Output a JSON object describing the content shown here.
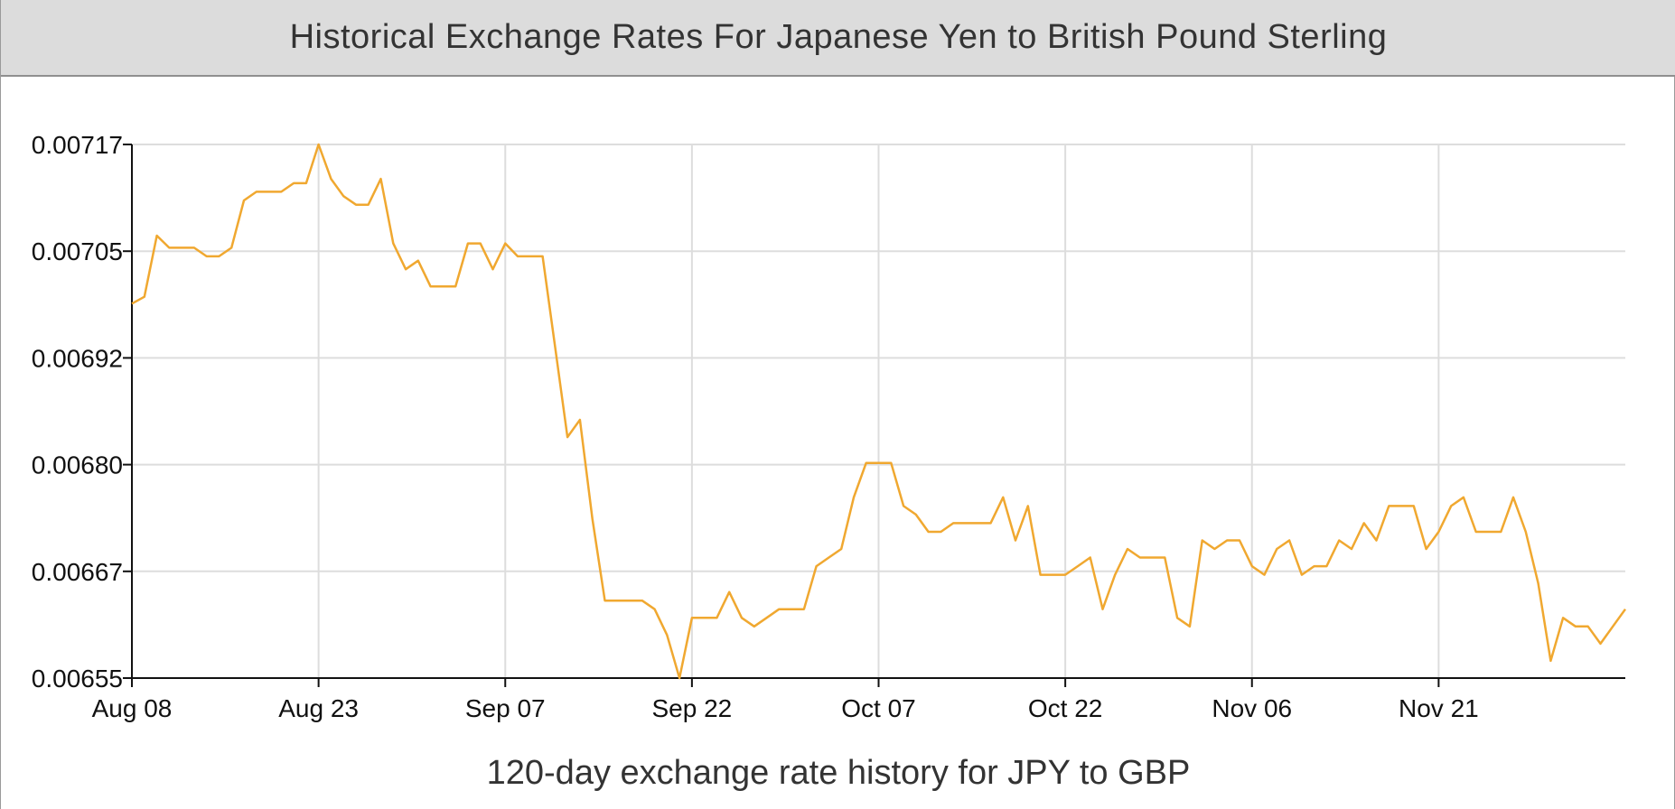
{
  "header": {
    "title": "Historical Exchange Rates For Japanese Yen to British Pound Sterling"
  },
  "chart_data": {
    "type": "line",
    "title": "Historical Exchange Rates For Japanese Yen to British Pound Sterling",
    "caption": "120-day exchange rate history for JPY to GBP",
    "xlabel": "",
    "ylabel": "",
    "x_tick_labels": [
      "Aug 08",
      "Aug 23",
      "Sep 07",
      "Sep 22",
      "Oct 07",
      "Oct 22",
      "Nov 06",
      "Nov 21"
    ],
    "y_tick_labels": [
      "0.00717",
      "0.00705",
      "0.00692",
      "0.00680",
      "0.00667",
      "0.00655"
    ],
    "ylim": [
      0.00655,
      0.00717
    ],
    "grid": true,
    "line_color": "#f0a830",
    "series": [
      {
        "values": [
          0.006985,
          0.006993,
          0.007064,
          0.00705,
          0.00705,
          0.00705,
          0.00704,
          0.00704,
          0.00705,
          0.007105,
          0.007115,
          0.007115,
          0.007115,
          0.007125,
          0.007125,
          0.00717,
          0.00713,
          0.00711,
          0.0071,
          0.0071,
          0.00713,
          0.007055,
          0.007025,
          0.007035,
          0.007005,
          0.007005,
          0.007005,
          0.007055,
          0.007055,
          0.007025,
          0.007055,
          0.00704,
          0.00704,
          0.00704,
          0.006935,
          0.00683,
          0.00685,
          0.006735,
          0.00664,
          0.00664,
          0.00664,
          0.00664,
          0.00663,
          0.0066,
          0.00655,
          0.00662,
          0.00662,
          0.00662,
          0.00665,
          0.00662,
          0.00661,
          0.00662,
          0.00663,
          0.00663,
          0.00663,
          0.00668,
          0.00669,
          0.0067,
          0.00676,
          0.0068,
          0.0068,
          0.0068,
          0.00675,
          0.00674,
          0.00672,
          0.00672,
          0.00673,
          0.00673,
          0.00673,
          0.00673,
          0.00676,
          0.00671,
          0.00675,
          0.00667,
          0.00667,
          0.00667,
          0.00668,
          0.00669,
          0.00663,
          0.00667,
          0.0067,
          0.00669,
          0.00669,
          0.00669,
          0.00662,
          0.00661,
          0.00671,
          0.0067,
          0.00671,
          0.00671,
          0.00668,
          0.00667,
          0.0067,
          0.00671,
          0.00667,
          0.00668,
          0.00668,
          0.00671,
          0.0067,
          0.00673,
          0.00671,
          0.00675,
          0.00675,
          0.00675,
          0.0067,
          0.00672,
          0.00675,
          0.00676,
          0.00672,
          0.00672,
          0.00672,
          0.00676,
          0.00672,
          0.00666,
          0.00657,
          0.00662,
          0.00661,
          0.00661,
          0.00659,
          0.00661,
          0.00663
        ]
      }
    ]
  }
}
